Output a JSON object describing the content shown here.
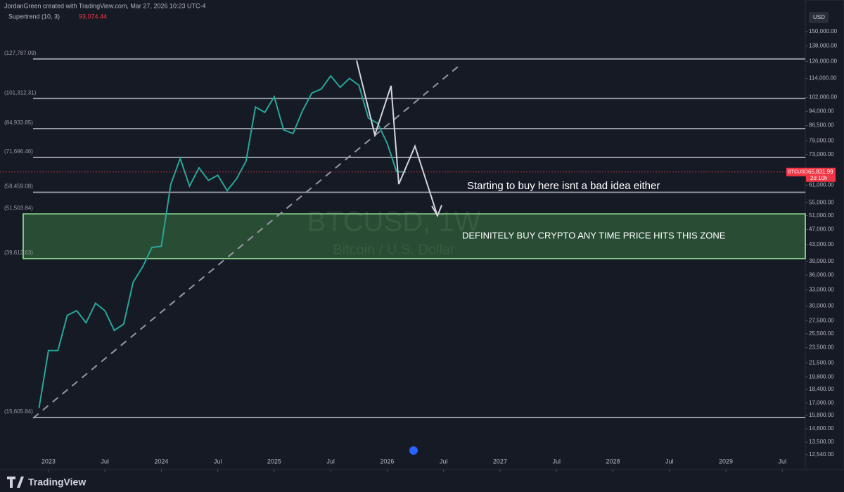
{
  "header": {
    "author_line": "JordanGreen created with TradingView.com, Mar 27, 2026 10:23 UTC-4",
    "indicator": "Supertrend (10, 3)",
    "indicator_value": "93,074.44",
    "currency": "USD",
    "countdown": "2d 10h"
  },
  "footer": {
    "brand": "TradingView"
  },
  "chart_data": {
    "type": "line",
    "title": "BTCUSD, 1W",
    "subtitle": "Bitcoin / U.S. Dollar",
    "log_scale": true,
    "series": [
      {
        "name": "BTCUSD",
        "color": "#26a69a",
        "x": [
          "2022-12",
          "2023-01",
          "2023-02",
          "2023-03",
          "2023-04",
          "2023-05",
          "2023-06",
          "2023-07",
          "2023-08",
          "2023-09",
          "2023-10",
          "2023-11",
          "2023-12",
          "2024-01",
          "2024-02",
          "2024-03",
          "2024-04",
          "2024-05",
          "2024-06",
          "2024-07",
          "2024-08",
          "2024-09",
          "2024-10",
          "2024-11",
          "2024-12",
          "2025-01",
          "2025-02",
          "2025-03",
          "2025-04",
          "2025-05",
          "2025-06",
          "2025-07",
          "2025-08",
          "2025-09",
          "2025-10",
          "2025-11",
          "2025-12",
          "2026-01",
          "2026-02",
          "2026-03"
        ],
        "values": [
          16500,
          23100,
          23100,
          28400,
          29200,
          27200,
          30500,
          29200,
          26000,
          27000,
          34500,
          37700,
          42300,
          42600,
          61200,
          71300,
          60600,
          67500,
          62700,
          64600,
          59000,
          63300,
          70200,
          96400,
          93400,
          102400,
          84300,
          82500,
          94200,
          104600,
          107100,
          115700,
          108200,
          114000,
          109500,
          90400,
          87500,
          78000,
          66000,
          65832
        ]
      }
    ],
    "last_price": {
      "value": 65831.99,
      "label": "65,831.99"
    },
    "levels": [
      {
        "value": 127787.09,
        "label": "(127,787.09)"
      },
      {
        "value": 101312.31,
        "label": "(101,312.31)"
      },
      {
        "value": 84933.85,
        "label": "(84,933.85)"
      },
      {
        "value": 71696.46,
        "label": "(71,696.46)"
      },
      {
        "value": 58459.08,
        "label": "(58,459.08)"
      },
      {
        "value": 51503.84,
        "label": "(51,503.84)"
      },
      {
        "value": 39612.63,
        "label": "(39,612.63)"
      },
      {
        "value": 15605.84,
        "label": "(15,605.84)"
      }
    ],
    "annotations": [
      "Starting to buy here isnt a bad idea either",
      "DEFINITELY BUY CRYPTO ANY TIME PRICE HITS THIS ZONE"
    ],
    "xlim": [
      "2022-08",
      "2029-09"
    ],
    "xticks": [
      {
        "value": "2023-01",
        "label": "2023"
      },
      {
        "value": "2023-07",
        "label": "Jul"
      },
      {
        "value": "2024-01",
        "label": "2024"
      },
      {
        "value": "2024-07",
        "label": "Jul"
      },
      {
        "value": "2025-01",
        "label": "2025"
      },
      {
        "value": "2025-07",
        "label": "Jul"
      },
      {
        "value": "2026-01",
        "label": "2026"
      },
      {
        "value": "2026-07",
        "label": "Jul"
      },
      {
        "value": "2027-01",
        "label": "2027"
      },
      {
        "value": "2027-07",
        "label": "Jul"
      },
      {
        "value": "2028-01",
        "label": "2028"
      },
      {
        "value": "2028-07",
        "label": "Jul"
      },
      {
        "value": "2029-01",
        "label": "2029"
      },
      {
        "value": "2029-07",
        "label": "Jul"
      }
    ],
    "ylim": [
      12386,
      164900
    ],
    "yticks": [
      {
        "value": 150000,
        "label": "150,000.00"
      },
      {
        "value": 138000,
        "label": "138,000.00"
      },
      {
        "value": 126000,
        "label": "126,000.00"
      },
      {
        "value": 114000,
        "label": "114,000.00"
      },
      {
        "value": 102000,
        "label": "102,000.00"
      },
      {
        "value": 94000,
        "label": "94,000.00"
      },
      {
        "value": 86500,
        "label": "86,500.00"
      },
      {
        "value": 79000,
        "label": "79,000.00"
      },
      {
        "value": 73000,
        "label": "73,000.00"
      },
      {
        "value": 61000,
        "label": "61,000.00"
      },
      {
        "value": 55000,
        "label": "55,000.00"
      },
      {
        "value": 51000,
        "label": "51,000.00"
      },
      {
        "value": 47000,
        "label": "47,000.00"
      },
      {
        "value": 43000,
        "label": "43,000.00"
      },
      {
        "value": 39000,
        "label": "39,000.00"
      },
      {
        "value": 36000,
        "label": "36,000.00"
      },
      {
        "value": 33000,
        "label": "33,000.00"
      },
      {
        "value": 30000,
        "label": "30,000.00"
      },
      {
        "value": 27500,
        "label": "27,500.00"
      },
      {
        "value": 25500,
        "label": "25,500.00"
      },
      {
        "value": 23500,
        "label": "23,500.00"
      },
      {
        "value": 21500,
        "label": "21,500.00"
      },
      {
        "value": 19800,
        "label": "19,800.00"
      },
      {
        "value": 18400,
        "label": "18,400.00"
      },
      {
        "value": 17000,
        "label": "17,000.00"
      },
      {
        "value": 15800,
        "label": "15,800.00"
      },
      {
        "value": 14600,
        "label": "14,600.00"
      },
      {
        "value": 13500,
        "label": "13,500.00"
      },
      {
        "value": 12540,
        "label": "12,540.00"
      }
    ],
    "grid": false
  }
}
